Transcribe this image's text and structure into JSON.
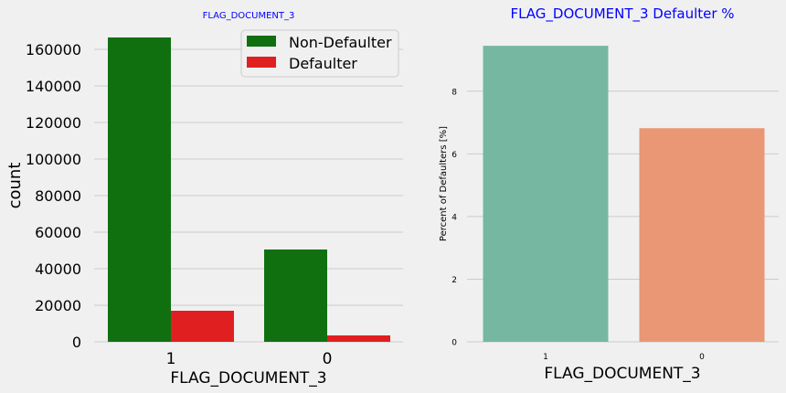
{
  "chart_data": [
    {
      "type": "bar",
      "title": "FLAG_DOCUMENT_3",
      "xlabel": "FLAG_DOCUMENT_3",
      "ylabel": "count",
      "categories": [
        "1",
        "0"
      ],
      "ylim": [
        0,
        170000
      ],
      "yticks": [
        0,
        20000,
        40000,
        60000,
        80000,
        100000,
        120000,
        140000,
        160000
      ],
      "grid": "horizontal",
      "legend_position": "top-right",
      "series": [
        {
          "name": "Non-Defaulter",
          "color": "#107010",
          "values": [
            166500,
            50500
          ]
        },
        {
          "name": "Defaulter",
          "color": "#e02020",
          "values": [
            17000,
            3500
          ]
        }
      ]
    },
    {
      "type": "bar",
      "title": "FLAG_DOCUMENT_3 Defaulter %",
      "xlabel": "FLAG_DOCUMENT_3",
      "ylabel": "Percent of Defaulters [%]",
      "categories": [
        "1",
        "0"
      ],
      "values": [
        9.45,
        6.82
      ],
      "colors": [
        "#76b7a2",
        "#e99774"
      ],
      "ylim": [
        0,
        9.92
      ],
      "yticks": [
        0,
        2,
        4,
        6,
        8
      ],
      "grid": "horizontal"
    }
  ]
}
